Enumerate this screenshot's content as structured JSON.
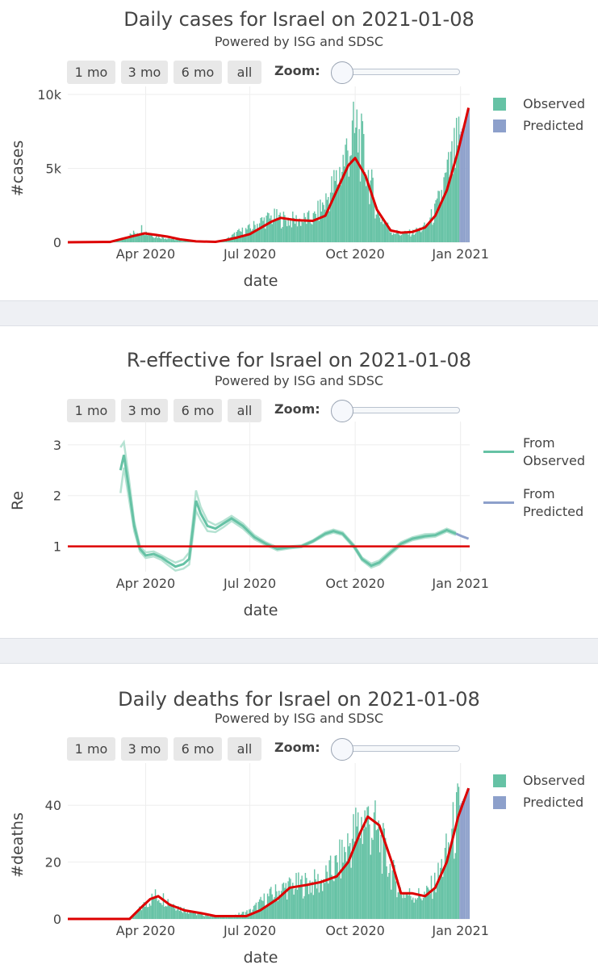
{
  "range_buttons": [
    "1 mo",
    "3 mo",
    "6 mo",
    "all"
  ],
  "zoom_label": "Zoom:",
  "colors": {
    "observed": "#66c2a5",
    "predicted": "#8da0cb",
    "fit": "#dd0000",
    "reference": "#dd0000"
  },
  "charts": [
    {
      "title": "Daily cases for Israel on 2021-01-08",
      "subtitle": "Powered by ISG and SDSC",
      "legend": [
        "Observed",
        "Predicted"
      ]
    },
    {
      "title": "R-effective for Israel on 2021-01-08",
      "subtitle": "Powered by ISG and SDSC",
      "legend": [
        "From Observed",
        "From Predicted"
      ]
    },
    {
      "title": "Daily deaths for Israel on 2021-01-08",
      "subtitle": "Powered by ISG and SDSC",
      "legend": [
        "Observed",
        "Predicted"
      ]
    }
  ],
  "chart_data": [
    {
      "type": "bar",
      "title": "Daily cases for Israel on 2021-01-08",
      "subtitle": "Powered by ISG and SDSC",
      "xlabel": "date",
      "ylabel": "#cases",
      "x_range": [
        "2020-01-24",
        "2021-01-09"
      ],
      "xticks": [
        "Apr 2020",
        "Jul 2020",
        "Oct 2020",
        "Jan 2021"
      ],
      "xtick_dates": [
        "2020-04-01",
        "2020-07-01",
        "2020-10-01",
        "2021-01-01"
      ],
      "ylim": [
        0,
        10000
      ],
      "yticks": [
        0,
        5000,
        10000
      ],
      "ytick_labels": [
        "0",
        "5k",
        "10k"
      ],
      "observed_range": [
        "2020-03-01",
        "2020-12-30"
      ],
      "predicted_range": [
        "2020-12-31",
        "2021-01-08"
      ],
      "observed_profile": {
        "dates": [
          "2020-03-01",
          "2020-03-10",
          "2020-03-20",
          "2020-03-28",
          "2020-04-02",
          "2020-04-10",
          "2020-04-20",
          "2020-05-01",
          "2020-05-15",
          "2020-06-01",
          "2020-06-10",
          "2020-06-20",
          "2020-07-01",
          "2020-07-10",
          "2020-07-20",
          "2020-07-28",
          "2020-08-10",
          "2020-08-25",
          "2020-09-05",
          "2020-09-15",
          "2020-09-25",
          "2020-10-02",
          "2020-10-10",
          "2020-10-20",
          "2020-11-01",
          "2020-11-10",
          "2020-11-20",
          "2020-12-01",
          "2020-12-10",
          "2020-12-20",
          "2020-12-30"
        ],
        "values": [
          10,
          150,
          600,
          1000,
          650,
          450,
          300,
          150,
          40,
          20,
          200,
          700,
          1000,
          1500,
          1800,
          1700,
          1600,
          1700,
          3000,
          4600,
          7000,
          8000,
          5500,
          2200,
          800,
          600,
          700,
          1100,
          2300,
          4800,
          7000
        ]
      },
      "predicted_profile": {
        "dates": [
          "2020-12-31",
          "2021-01-03",
          "2021-01-06",
          "2021-01-08"
        ],
        "values": [
          7300,
          7900,
          8500,
          9000
        ]
      },
      "fit": {
        "dates": [
          "2020-01-24",
          "2020-03-01",
          "2020-03-20",
          "2020-03-31",
          "2020-04-10",
          "2020-04-20",
          "2020-05-01",
          "2020-05-15",
          "2020-06-01",
          "2020-06-10",
          "2020-06-20",
          "2020-07-01",
          "2020-07-10",
          "2020-07-20",
          "2020-07-28",
          "2020-08-10",
          "2020-08-25",
          "2020-09-05",
          "2020-09-15",
          "2020-09-25",
          "2020-10-01",
          "2020-10-10",
          "2020-10-20",
          "2020-11-01",
          "2020-11-10",
          "2020-11-20",
          "2020-12-01",
          "2020-12-10",
          "2020-12-20",
          "2020-12-30",
          "2021-01-08"
        ],
        "values": [
          0,
          20,
          400,
          600,
          500,
          380,
          200,
          60,
          30,
          150,
          320,
          550,
          950,
          1400,
          1650,
          1500,
          1450,
          1800,
          3500,
          5200,
          5700,
          4500,
          2200,
          800,
          650,
          700,
          1000,
          1800,
          3500,
          6200,
          9100
        ]
      }
    },
    {
      "type": "line",
      "title": "R-effective for Israel on 2021-01-08",
      "subtitle": "Powered by ISG and SDSC",
      "xlabel": "date",
      "ylabel": "Re",
      "x_range": [
        "2020-01-24",
        "2021-01-09"
      ],
      "xticks": [
        "Apr 2020",
        "Jul 2020",
        "Oct 2020",
        "Jan 2021"
      ],
      "xtick_dates": [
        "2020-04-01",
        "2020-07-01",
        "2020-10-01",
        "2021-01-01"
      ],
      "ylim": [
        0.5,
        3.3
      ],
      "yticks": [
        1,
        2,
        3
      ],
      "reference_line": 1,
      "series": [
        {
          "name": "From Observed",
          "dates": [
            "2020-03-10",
            "2020-03-13",
            "2020-03-17",
            "2020-03-22",
            "2020-03-27",
            "2020-04-01",
            "2020-04-08",
            "2020-04-15",
            "2020-04-20",
            "2020-04-27",
            "2020-05-04",
            "2020-05-09",
            "2020-05-12",
            "2020-05-15",
            "2020-05-19",
            "2020-05-25",
            "2020-06-01",
            "2020-06-08",
            "2020-06-15",
            "2020-06-25",
            "2020-07-05",
            "2020-07-15",
            "2020-07-25",
            "2020-08-05",
            "2020-08-15",
            "2020-08-25",
            "2020-09-05",
            "2020-09-12",
            "2020-09-20",
            "2020-09-30",
            "2020-10-07",
            "2020-10-15",
            "2020-10-22",
            "2020-11-01",
            "2020-11-10",
            "2020-11-20",
            "2020-12-01",
            "2020-12-10",
            "2020-12-20",
            "2020-12-28"
          ],
          "values": [
            2.5,
            2.8,
            2.2,
            1.4,
            0.95,
            0.82,
            0.85,
            0.78,
            0.7,
            0.6,
            0.65,
            0.75,
            1.3,
            1.9,
            1.65,
            1.4,
            1.35,
            1.45,
            1.55,
            1.4,
            1.18,
            1.05,
            0.95,
            0.98,
            1.0,
            1.1,
            1.25,
            1.3,
            1.25,
            1.0,
            0.75,
            0.62,
            0.68,
            0.88,
            1.05,
            1.15,
            1.2,
            1.22,
            1.32,
            1.25
          ],
          "upper": [
            2.95,
            3.05,
            2.4,
            1.5,
            1.0,
            0.88,
            0.9,
            0.82,
            0.76,
            0.68,
            0.74,
            0.88,
            1.45,
            2.1,
            1.78,
            1.5,
            1.42,
            1.5,
            1.6,
            1.45,
            1.22,
            1.08,
            0.98,
            1.0,
            1.02,
            1.12,
            1.28,
            1.33,
            1.28,
            1.03,
            0.78,
            0.66,
            0.72,
            0.92,
            1.08,
            1.18,
            1.24,
            1.25,
            1.35,
            1.28
          ],
          "lower": [
            2.05,
            2.55,
            2.0,
            1.3,
            0.9,
            0.77,
            0.8,
            0.73,
            0.64,
            0.52,
            0.56,
            0.64,
            1.15,
            1.7,
            1.52,
            1.3,
            1.28,
            1.38,
            1.5,
            1.35,
            1.14,
            1.02,
            0.92,
            0.96,
            0.98,
            1.08,
            1.22,
            1.27,
            1.22,
            0.97,
            0.72,
            0.58,
            0.64,
            0.84,
            1.02,
            1.12,
            1.17,
            1.19,
            1.29,
            1.22
          ]
        },
        {
          "name": "From Predicted",
          "dates": [
            "2020-12-28",
            "2021-01-02",
            "2021-01-08"
          ],
          "values": [
            1.25,
            1.2,
            1.15
          ]
        }
      ]
    },
    {
      "type": "bar",
      "title": "Daily deaths for Israel on 2021-01-08",
      "subtitle": "Powered by ISG and SDSC",
      "xlabel": "date",
      "ylabel": "#deaths",
      "x_range": [
        "2020-01-24",
        "2021-01-09"
      ],
      "xticks": [
        "Apr 2020",
        "Jul 2020",
        "Oct 2020",
        "Jan 2021"
      ],
      "xtick_dates": [
        "2020-04-01",
        "2020-07-01",
        "2020-10-01",
        "2021-01-01"
      ],
      "ylim": [
        0,
        52
      ],
      "yticks": [
        0,
        20,
        40
      ],
      "ytick_labels": [
        "0",
        "20",
        "40"
      ],
      "observed_range": [
        "2020-03-20",
        "2020-12-30"
      ],
      "predicted_range": [
        "2020-12-31",
        "2021-01-08"
      ],
      "observed_profile": {
        "dates": [
          "2020-03-20",
          "2020-04-01",
          "2020-04-10",
          "2020-04-20",
          "2020-05-01",
          "2020-05-15",
          "2020-06-01",
          "2020-06-15",
          "2020-07-01",
          "2020-07-15",
          "2020-08-01",
          "2020-08-15",
          "2020-09-01",
          "2020-09-15",
          "2020-10-01",
          "2020-10-10",
          "2020-10-20",
          "2020-11-01",
          "2020-11-10",
          "2020-11-20",
          "2020-12-01",
          "2020-12-10",
          "2020-12-20",
          "2020-12-30"
        ],
        "values": [
          1,
          6,
          9,
          7,
          4,
          2,
          1,
          1,
          3,
          8,
          12,
          13,
          14,
          20,
          33,
          38,
          32,
          18,
          10,
          9,
          9,
          14,
          25,
          40
        ]
      },
      "predicted_profile": {
        "dates": [
          "2020-12-31",
          "2021-01-04",
          "2021-01-08"
        ],
        "values": [
          40,
          43,
          46
        ]
      },
      "fit": {
        "dates": [
          "2020-01-24",
          "2020-03-18",
          "2020-03-28",
          "2020-04-05",
          "2020-04-12",
          "2020-04-22",
          "2020-05-05",
          "2020-05-20",
          "2020-06-01",
          "2020-06-15",
          "2020-06-28",
          "2020-07-10",
          "2020-07-25",
          "2020-08-05",
          "2020-08-20",
          "2020-09-01",
          "2020-09-15",
          "2020-09-25",
          "2020-10-05",
          "2020-10-12",
          "2020-10-22",
          "2020-11-02",
          "2020-11-10",
          "2020-11-20",
          "2020-12-01",
          "2020-12-10",
          "2020-12-20",
          "2020-12-30",
          "2021-01-08"
        ],
        "values": [
          0,
          0,
          4,
          7,
          8,
          5,
          3,
          2,
          1,
          1,
          1,
          3,
          7,
          11,
          12,
          13,
          15,
          20,
          30,
          36,
          33,
          20,
          9,
          9,
          8,
          11,
          20,
          36,
          46
        ]
      }
    }
  ]
}
